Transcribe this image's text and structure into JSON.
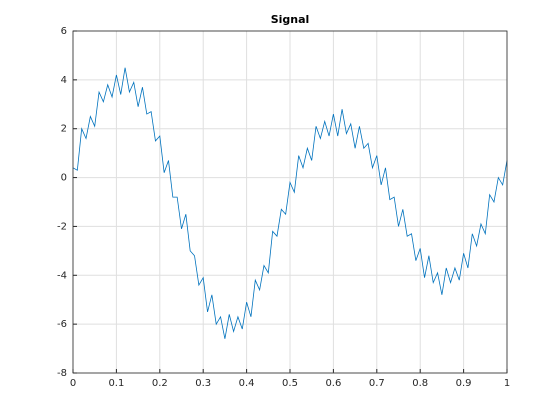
{
  "chart_data": {
    "type": "line",
    "title": "Signal",
    "x": [
      0,
      0.01,
      0.02,
      0.03,
      0.04,
      0.05,
      0.06,
      0.07,
      0.08,
      0.09,
      0.1,
      0.11,
      0.12,
      0.13,
      0.14,
      0.15,
      0.16,
      0.17,
      0.18,
      0.19,
      0.2,
      0.21,
      0.22,
      0.23,
      0.24,
      0.25,
      0.26,
      0.27,
      0.28,
      0.29,
      0.3,
      0.31,
      0.32,
      0.33,
      0.34,
      0.35,
      0.36,
      0.37,
      0.38,
      0.39,
      0.4,
      0.41,
      0.42,
      0.43,
      0.44,
      0.45,
      0.46,
      0.47,
      0.48,
      0.49,
      0.5,
      0.51,
      0.52,
      0.53,
      0.54,
      0.55,
      0.56,
      0.57,
      0.58,
      0.59,
      0.6,
      0.61,
      0.62,
      0.63,
      0.64,
      0.65,
      0.66,
      0.67,
      0.68,
      0.69,
      0.7,
      0.71,
      0.72,
      0.73,
      0.74,
      0.75,
      0.76,
      0.77,
      0.78,
      0.79,
      0.8,
      0.81,
      0.82,
      0.83,
      0.84,
      0.85,
      0.86,
      0.87,
      0.88,
      0.89,
      0.9,
      0.91,
      0.92,
      0.93,
      0.94,
      0.95,
      0.96,
      0.97,
      0.98,
      0.99,
      1
    ],
    "series": [
      {
        "color": "#0072bd",
        "values": [
          0.4,
          0.3,
          2.0,
          1.6,
          2.5,
          2.1,
          3.5,
          3.1,
          3.8,
          3.3,
          4.2,
          3.4,
          4.5,
          3.5,
          3.9,
          2.9,
          3.7,
          2.6,
          2.7,
          1.5,
          1.7,
          0.2,
          0.7,
          -0.8,
          -0.8,
          -2.1,
          -1.5,
          -3.0,
          -3.2,
          -4.4,
          -4.1,
          -5.5,
          -4.8,
          -6.0,
          -5.7,
          -6.6,
          -5.6,
          -6.3,
          -5.7,
          -6.2,
          -5.1,
          -5.7,
          -4.2,
          -4.6,
          -3.6,
          -3.9,
          -2.2,
          -2.4,
          -1.3,
          -1.5,
          -0.2,
          -0.6,
          0.9,
          0.4,
          1.2,
          0.7,
          2.1,
          1.6,
          2.3,
          1.7,
          2.6,
          1.7,
          2.8,
          1.8,
          2.2,
          1.2,
          2.1,
          1.2,
          1.4,
          0.4,
          0.9,
          -0.3,
          0.4,
          -0.9,
          -0.8,
          -2.0,
          -1.3,
          -2.4,
          -2.3,
          -3.4,
          -2.9,
          -4.1,
          -3.2,
          -4.3,
          -3.9,
          -4.8,
          -3.7,
          -4.3,
          -3.7,
          -4.2,
          -3.1,
          -3.7,
          -2.3,
          -2.8,
          -1.9,
          -2.3,
          -0.7,
          -1.0,
          0.0,
          -0.3,
          0.7
        ]
      }
    ],
    "xlim": [
      0,
      1
    ],
    "xticks": [
      0,
      0.1,
      0.2,
      0.3,
      0.4,
      0.5,
      0.6,
      0.7,
      0.8,
      0.9,
      1
    ],
    "ylim": [
      -8,
      6
    ],
    "yticks": [
      -8,
      -6,
      -4,
      -2,
      0,
      2,
      4,
      6
    ],
    "grid": true
  }
}
